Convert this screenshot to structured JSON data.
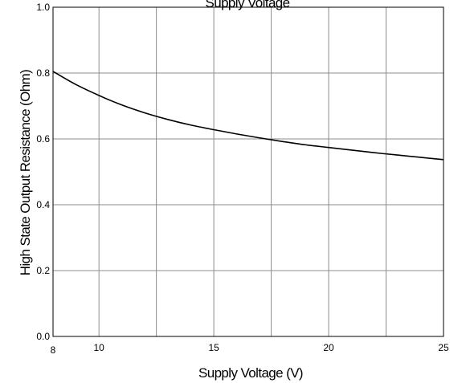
{
  "chart_data": {
    "type": "line",
    "title": "Supply Voltage",
    "xlabel": "Supply Voltage (V)",
    "ylabel": "High State Output Resistance (Ohm)",
    "xlim": [
      8,
      25
    ],
    "ylim": [
      0.0,
      1.0
    ],
    "x_ticks": [
      8,
      10,
      15,
      20,
      25
    ],
    "x_tick_labels": [
      "8",
      "10",
      "15",
      "20",
      "25"
    ],
    "x_grid": [
      8,
      10,
      12.5,
      15,
      17.5,
      20,
      22.5,
      25
    ],
    "y_ticks": [
      0.0,
      0.2,
      0.4,
      0.6,
      0.8,
      1.0
    ],
    "y_tick_labels": [
      "0.0",
      "0.2",
      "0.4",
      "0.6",
      "0.8",
      "1.0"
    ],
    "grid": true,
    "legend": "none",
    "series": [
      {
        "x": [
          8,
          9,
          10,
          11,
          12,
          13,
          14,
          15,
          16,
          17,
          18,
          19,
          20,
          21,
          22,
          23,
          24,
          25
        ],
        "y": [
          0.805,
          0.765,
          0.732,
          0.703,
          0.679,
          0.659,
          0.642,
          0.628,
          0.615,
          0.603,
          0.592,
          0.582,
          0.574,
          0.566,
          0.558,
          0.551,
          0.544,
          0.537
        ]
      }
    ],
    "colors": {
      "line": "#000000",
      "grid": "#8c8c8c",
      "frame": "#000000"
    }
  }
}
